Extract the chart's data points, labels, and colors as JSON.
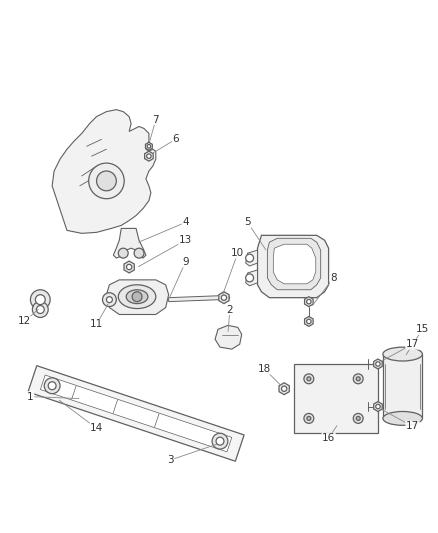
{
  "bg_color": "#ffffff",
  "line_color": "#606060",
  "label_color": "#333333",
  "fig_w": 4.38,
  "fig_h": 5.33,
  "dpi": 100
}
